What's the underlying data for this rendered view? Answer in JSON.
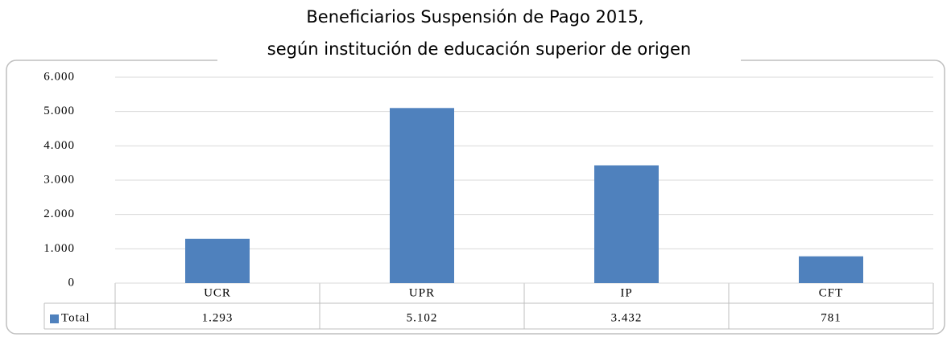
{
  "chart_data": {
    "type": "bar",
    "title": "Beneficiarios Suspensión de Pago 2015,",
    "subtitle": "según institución de educación superior de origen",
    "categories": [
      "UCR",
      "UPR",
      "IP",
      "CFT"
    ],
    "series": [
      {
        "name": "Total",
        "color": "#4f81bd",
        "values": [
          1293,
          5102,
          3432,
          781
        ],
        "value_labels": [
          "1.293",
          "5.102",
          "3.432",
          "781"
        ]
      }
    ],
    "ylim": [
      0,
      6000
    ],
    "yticks": [
      0,
      {
        "value": 1000,
        "label": "1.000"
      },
      {
        "value": 2000,
        "label": "2.000"
      },
      {
        "value": 3000,
        "label": "3.000"
      },
      {
        "value": 4000,
        "label": "4.000"
      },
      {
        "value": 5000,
        "label": "5.000"
      },
      {
        "value": 6000,
        "label": "6.000"
      }
    ],
    "grid": true
  }
}
